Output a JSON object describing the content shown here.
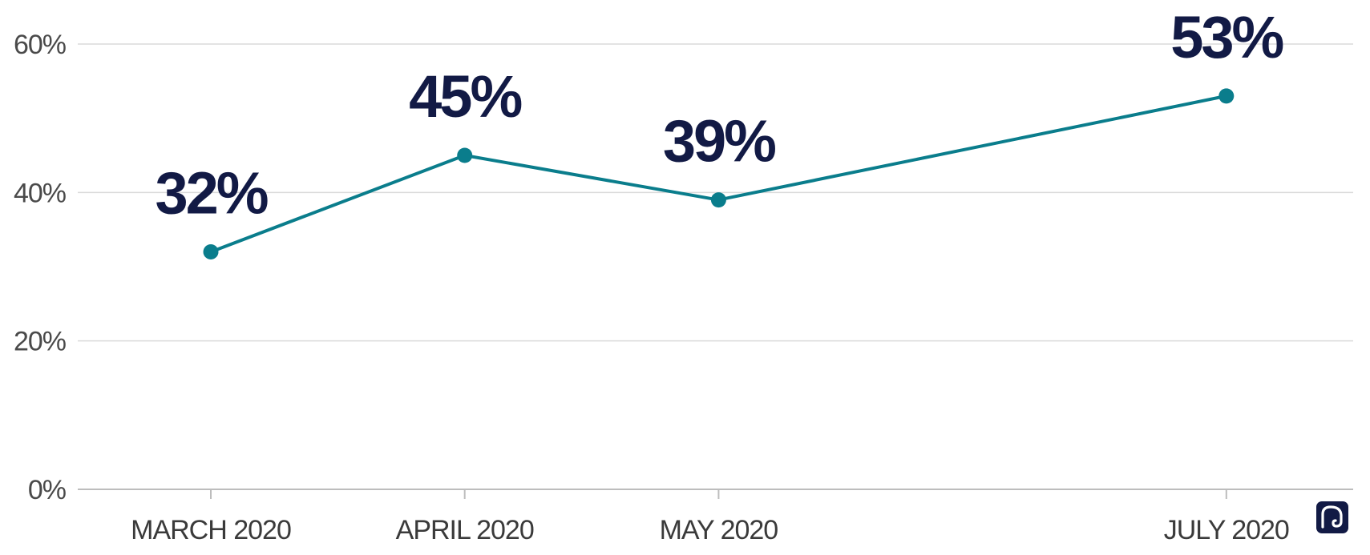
{
  "chart_data": {
    "type": "line",
    "title": "",
    "xlabel": "",
    "ylabel": "",
    "x": [
      "MARCH 2020",
      "APRIL 2020",
      "MAY 2020",
      "JULY 2020"
    ],
    "x_months": [
      3,
      4,
      5,
      7
    ],
    "series": [
      {
        "values": [
          32,
          45,
          39,
          53
        ],
        "data_labels": [
          "32%",
          "45%",
          "39%",
          "53%"
        ]
      }
    ],
    "ylim": [
      0,
      60
    ],
    "y_ticks": [
      0,
      20,
      40,
      60
    ],
    "y_tick_labels": [
      "0%",
      "20%",
      "40%",
      "60%"
    ],
    "grid": true,
    "legend": "none"
  },
  "colors": {
    "line": "#0a7d8c",
    "label": "#121a45",
    "logo": "#121a45"
  },
  "logo": {
    "icon": "elephant-icon"
  }
}
